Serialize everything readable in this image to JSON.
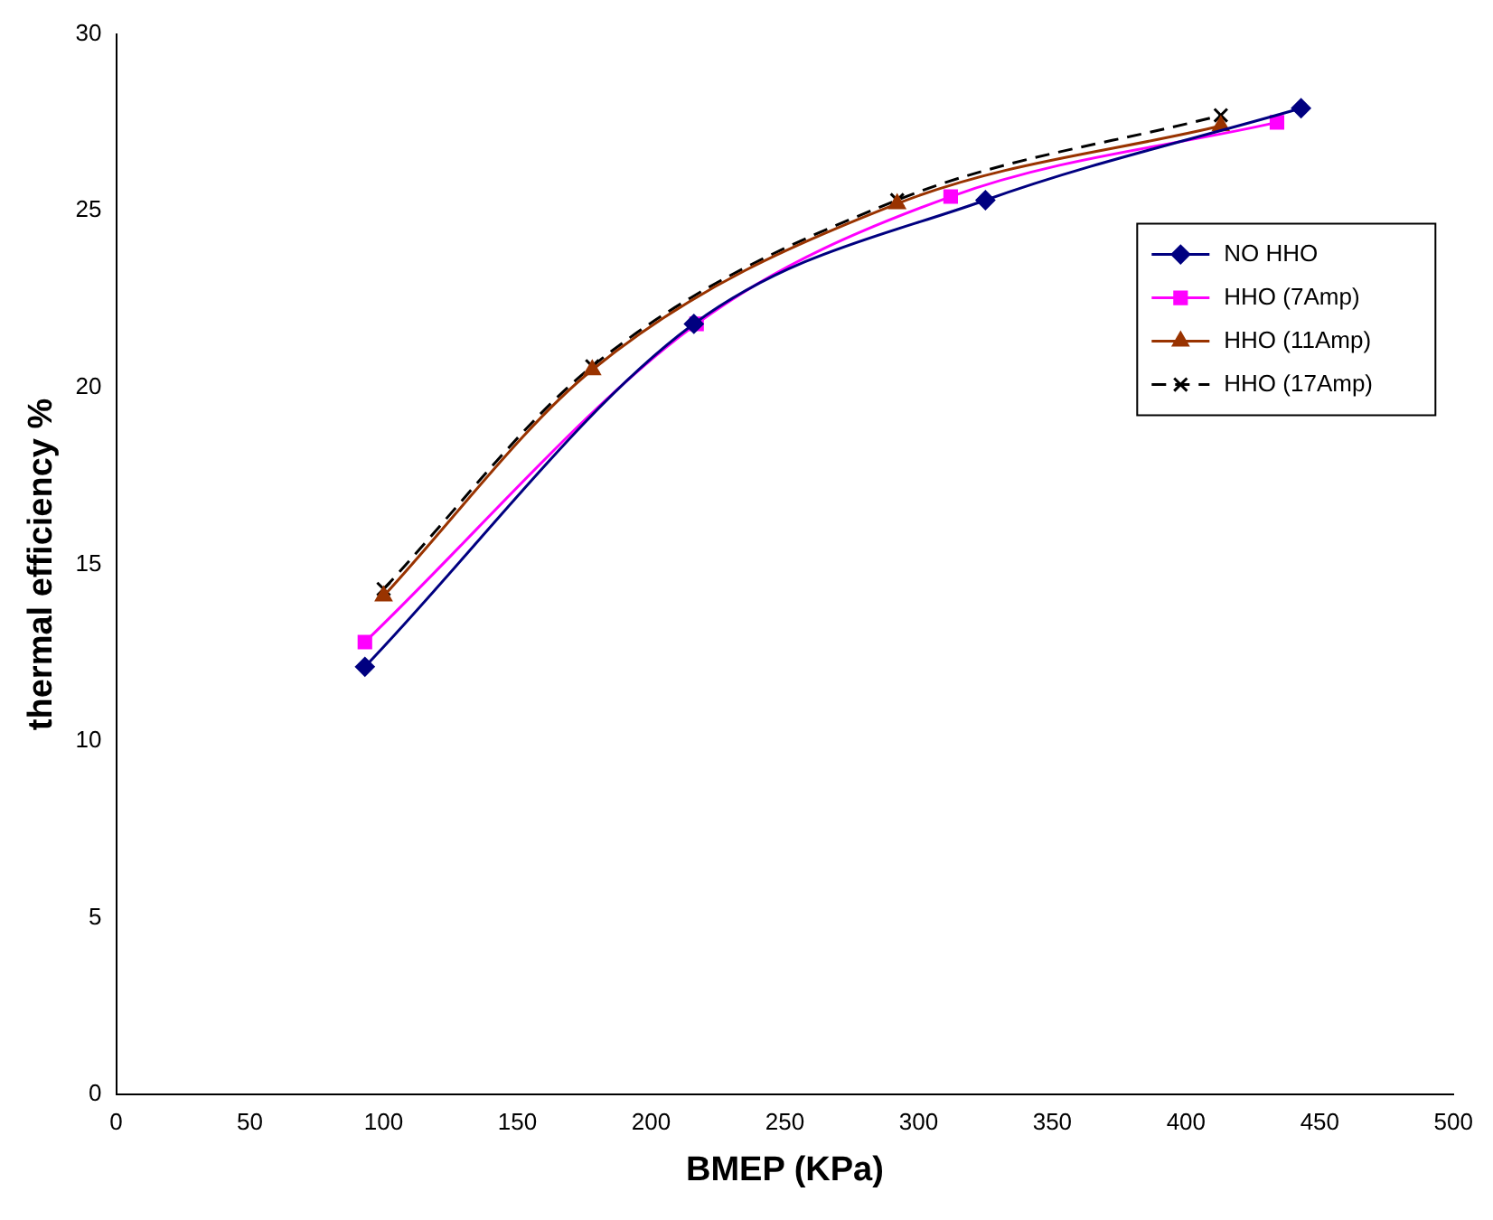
{
  "chart_data": {
    "type": "line",
    "xlabel": "BMEP (KPa)",
    "ylabel": "thermal efficiency %",
    "xlim": [
      0,
      500
    ],
    "xticks": [
      0,
      50,
      100,
      150,
      200,
      250,
      300,
      350,
      400,
      450,
      500
    ],
    "ylim": [
      0,
      30
    ],
    "yticks": [
      0,
      5,
      10,
      15,
      20,
      25,
      30
    ],
    "grid": false,
    "legend": "top right",
    "series": [
      {
        "name": "NO HHO",
        "color": "#000080",
        "marker": "diamond",
        "line_style": "solid",
        "x": [
          93,
          216,
          325,
          443
        ],
        "values": [
          12.1,
          21.8,
          25.3,
          27.9
        ]
      },
      {
        "name": "HHO (7Amp)",
        "color": "#ff00ff",
        "marker": "square",
        "line_style": "solid",
        "x": [
          93,
          217,
          312,
          434
        ],
        "values": [
          12.8,
          21.8,
          25.4,
          27.5
        ]
      },
      {
        "name": "HHO (11Amp)",
        "color": "#993300",
        "marker": "triangle",
        "line_style": "solid",
        "x": [
          100,
          178,
          292,
          413
        ],
        "values": [
          14.1,
          20.5,
          25.2,
          27.4
        ]
      },
      {
        "name": "HHO (17Amp)",
        "color": "#000000",
        "marker": "cross",
        "line_style": "dashed",
        "x": [
          100,
          178,
          292,
          413
        ],
        "values": [
          14.3,
          20.6,
          25.3,
          27.7
        ]
      }
    ]
  }
}
